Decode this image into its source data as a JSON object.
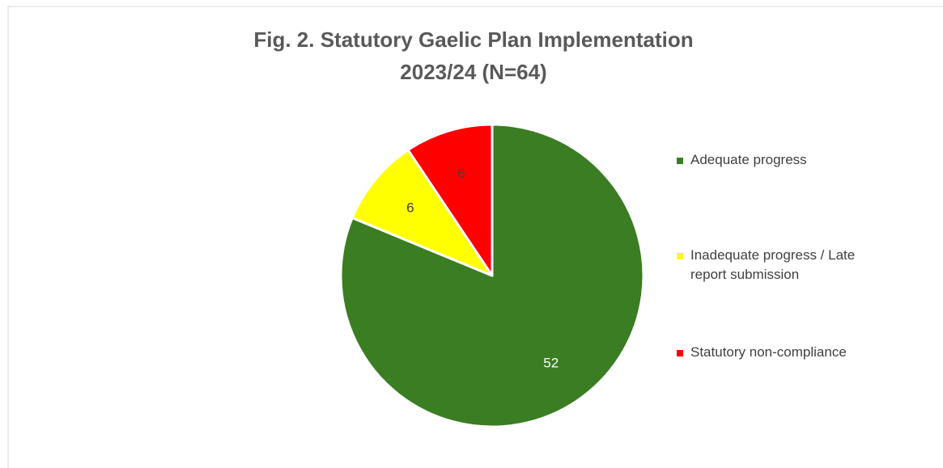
{
  "chart_data": {
    "type": "pie",
    "title": [
      "Fig. 2. Statutory Gaelic Plan Implementation",
      "2023/24 (N=64)"
    ],
    "categories": [
      "Adequate progress",
      "Inadequate progress / Late report submission",
      "Statutory non-compliance"
    ],
    "values": [
      52,
      6,
      6
    ],
    "colors": [
      "#3a7d22",
      "#ffff00",
      "#ff0000"
    ],
    "legend": "right"
  }
}
